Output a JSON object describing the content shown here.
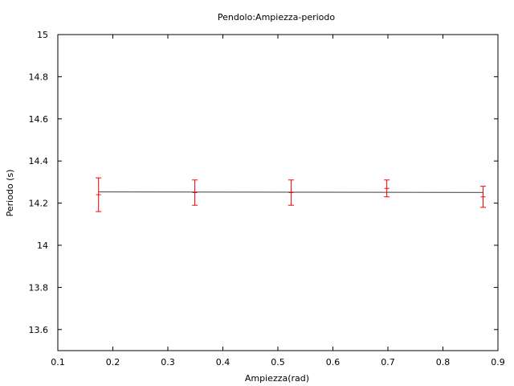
{
  "chart_data": {
    "type": "scatter",
    "title": "Pendolo:Ampiezza-periodo",
    "xlabel": "Ampiezza(rad)",
    "ylabel": "Periodo (s)",
    "xlim": [
      0.1,
      0.9
    ],
    "ylim": [
      13.5,
      15
    ],
    "x_ticks": [
      "0.1",
      "0.2",
      "0.3",
      "0.4",
      "0.5",
      "0.6",
      "0.7",
      "0.8",
      "0.9"
    ],
    "y_ticks": [
      "13.6",
      "13.8",
      "14",
      "14.2",
      "14.4",
      "14.6",
      "14.8",
      "15"
    ],
    "grid": false,
    "series": [
      {
        "color": "#ff0000",
        "points": [
          {
            "x": 0.174,
            "y": 14.24,
            "yerr": 0.08
          },
          {
            "x": 0.349,
            "y": 14.25,
            "yerr": 0.06
          },
          {
            "x": 0.524,
            "y": 14.25,
            "yerr": 0.06
          },
          {
            "x": 0.698,
            "y": 14.27,
            "yerr": 0.04
          },
          {
            "x": 0.873,
            "y": 14.23,
            "yerr": 0.05
          }
        ]
      }
    ],
    "fit_line": {
      "color": "#000000",
      "x": [
        0.174,
        0.873
      ],
      "y": [
        14.253,
        14.251
      ]
    }
  }
}
